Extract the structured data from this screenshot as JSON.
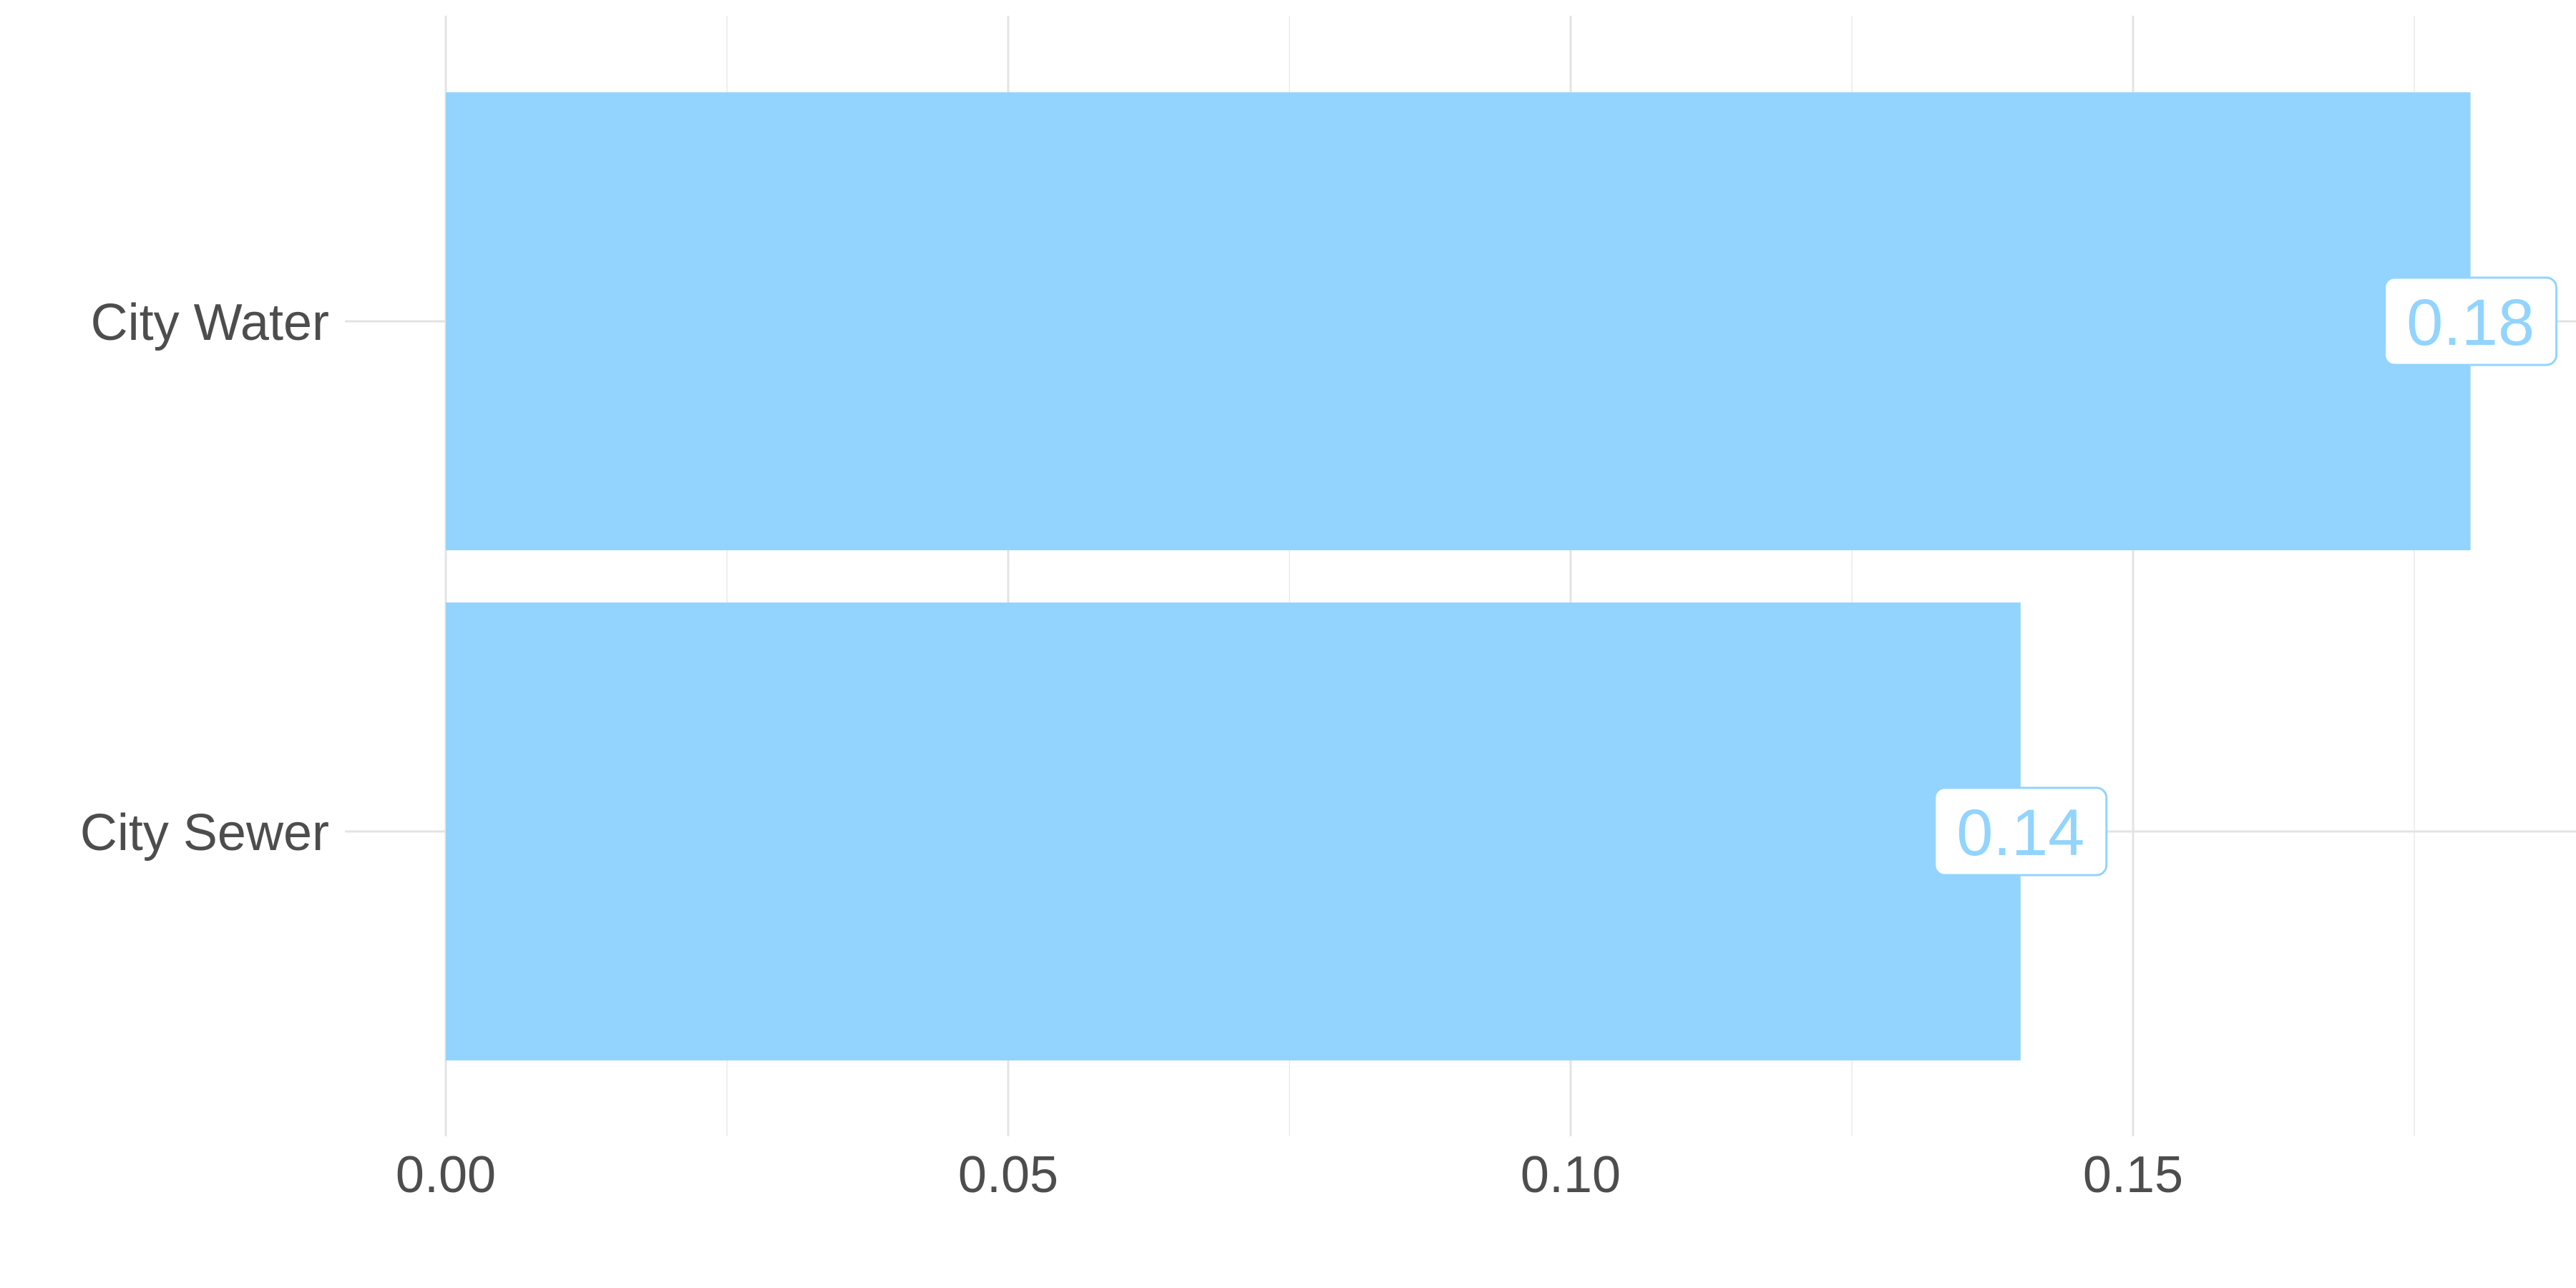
{
  "chart_data": {
    "type": "bar",
    "orientation": "horizontal",
    "categories": [
      "City Water",
      "City Sewer"
    ],
    "values": [
      0.18,
      0.14
    ],
    "data_labels": [
      "0.18",
      "0.14"
    ],
    "title": "",
    "xlabel": "",
    "ylabel": "",
    "xlim": [
      0,
      0.188
    ],
    "x_ticks": [
      0.0,
      0.05,
      0.1,
      0.15
    ],
    "x_tick_labels": [
      "0.00",
      "0.05",
      "0.10",
      "0.15"
    ],
    "grid": true,
    "legend": "none",
    "colors": {
      "bar": "#92d4fe",
      "label_text": "#92d4fe",
      "axis_text": "#4d4d4d",
      "grid": "#e3e3e3"
    }
  }
}
